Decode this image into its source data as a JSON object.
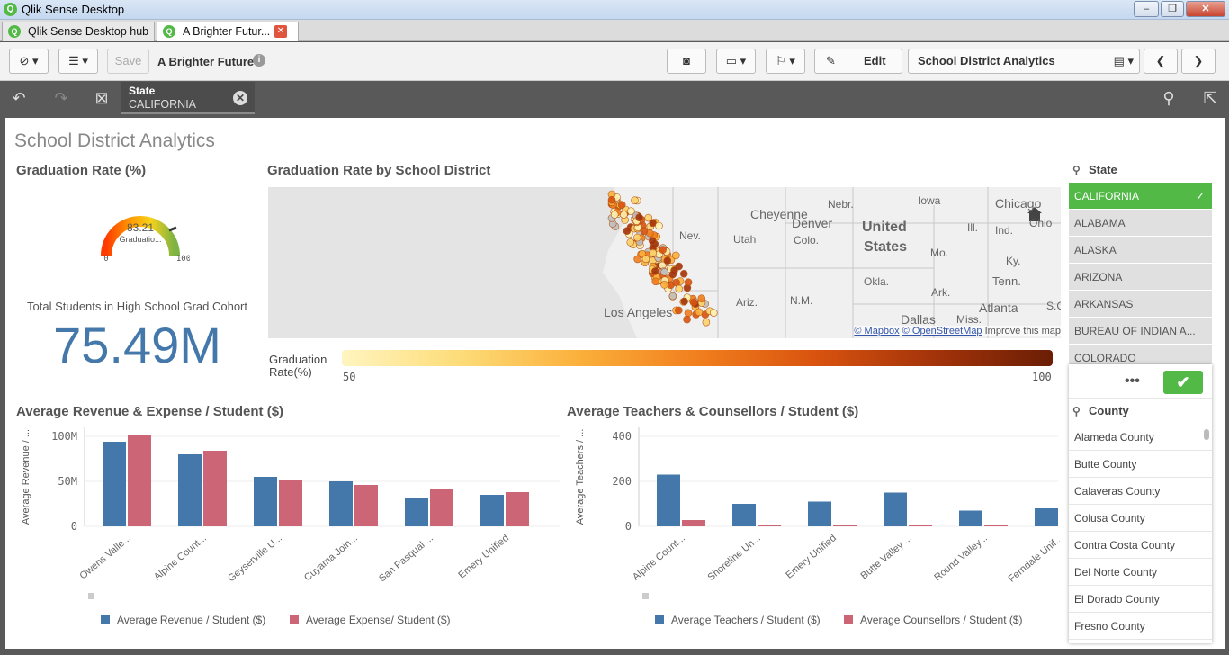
{
  "window": {
    "title": "Qlik Sense Desktop",
    "min": "–",
    "max": "❐",
    "close": "✕"
  },
  "tabs": [
    {
      "label": "Qlik Sense Desktop hub"
    },
    {
      "label": "A Brighter Futur..."
    }
  ],
  "toolbar": {
    "save_label": "Save",
    "app_name": "A Brighter Future",
    "edit_label": "Edit",
    "sheet_name": "School District Analytics"
  },
  "selection": {
    "field": "State",
    "value": "CALIFORNIA"
  },
  "sheet": {
    "title": "School District Analytics"
  },
  "gauge": {
    "title": "Graduation Rate (%)",
    "value": "83.21",
    "label": "Graduatio...",
    "min_label": "0",
    "max_label": "100",
    "fraction": 0.8321
  },
  "kpi": {
    "label": "Total Students in High School Grad Cohort",
    "value": "75.49M"
  },
  "map": {
    "title": "Graduation Rate by School District",
    "labels": [
      "Nebr.",
      "Iowa",
      "Chicago",
      "Cheyenne",
      "Denver",
      "Colo.",
      "United",
      "States",
      "Nev.",
      "Utah",
      "Ill.",
      "Ind.",
      "Ohio",
      "Mo.",
      "Ky.",
      "Okla.",
      "Ark.",
      "Tenn.",
      "Ariz.",
      "N.M.",
      "Los Angeles",
      "Dallas",
      "Miss.",
      "Atlanta",
      "S.C"
    ],
    "attribution_mapbox": "© Mapbox",
    "attribution_osm": "© OpenStreetMap",
    "attribution_improve": "Improve this map",
    "legend_title_1": "Graduation",
    "legend_title_2": "Rate(%)",
    "legend_min": "50",
    "legend_max": "100"
  },
  "chart_data": [
    {
      "type": "bar",
      "title": "Average Revenue & Expense / Student ($)",
      "ylabel": "Average Revenue / ...",
      "categories": [
        "Owens Valle...",
        "Alpine Count...",
        "Geyserville U...",
        "Cuyama Join...",
        "San Pasqual ...",
        "Emery Unified"
      ],
      "series": [
        {
          "name": "Average Revenue / Student ($)",
          "color": "#4477aa",
          "values": [
            94,
            80,
            55,
            50,
            32,
            35
          ]
        },
        {
          "name": "Average Expense/ Student ($)",
          "color": "#cc6677",
          "values": [
            101,
            84,
            52,
            46,
            42,
            38
          ]
        }
      ],
      "ylim": [
        0,
        110
      ],
      "yticks": [
        "0",
        "50M",
        "100M"
      ]
    },
    {
      "type": "bar",
      "title": "Average Teachers & Counsellors / Student ($)",
      "ylabel": "Average Teachers / ...",
      "categories": [
        "Alpine Count...",
        "Shoreline Un...",
        "Emery Unified",
        "Butte Valley ...",
        "Round Valley...",
        "Ferndale Unif..."
      ],
      "series": [
        {
          "name": "Average Teachers / Student ($)",
          "color": "#4477aa",
          "values": [
            230,
            100,
            110,
            150,
            70,
            80
          ]
        },
        {
          "name": "Average Counsellors / Student ($)",
          "color": "#cc6677",
          "values": [
            28,
            8,
            8,
            8,
            8,
            8
          ]
        }
      ],
      "ylim": [
        0,
        440
      ],
      "yticks": [
        "0",
        "200",
        "400"
      ]
    }
  ],
  "state_list": {
    "title": "State",
    "items": [
      "CALIFORNIA",
      "ALABAMA",
      "ALASKA",
      "ARIZONA",
      "ARKANSAS",
      "BUREAU OF INDIAN A...",
      "COLORADO"
    ]
  },
  "county_list": {
    "title": "County",
    "more": "•••",
    "items": [
      "Alameda County",
      "Butte County",
      "Calaveras County",
      "Colusa County",
      "Contra Costa County",
      "Del Norte County",
      "El Dorado County",
      "Fresno County"
    ]
  },
  "colors": {
    "accent_green": "#52b947",
    "revenue_blue": "#4477aa",
    "expense_red": "#cc6677"
  }
}
